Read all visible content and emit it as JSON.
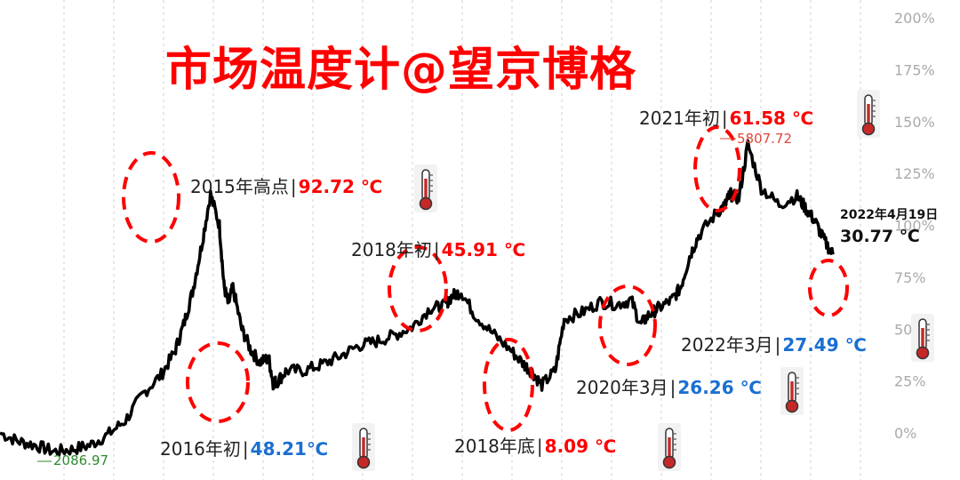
{
  "title": "市场温度计@望京博格",
  "annotations": [
    {
      "id": "a2015",
      "label": "2015年高点",
      "value": "92.72 ℃",
      "color": "red"
    },
    {
      "id": "a2016",
      "label": "2016年初",
      "value": "48.21℃",
      "color": "blue"
    },
    {
      "id": "a2018top",
      "label": "2018年初",
      "value": "45.91 ℃",
      "color": "red"
    },
    {
      "id": "a2018bot",
      "label": "2018年底",
      "value": "8.09 ℃",
      "color": "red"
    },
    {
      "id": "a2020",
      "label": "2020年3月",
      "value": "26.26 ℃",
      "color": "blue"
    },
    {
      "id": "a2021",
      "label": "2021年初",
      "value": "61.58 ℃",
      "color": "red"
    },
    {
      "id": "a2022",
      "label": "2022年3月",
      "value": "27.49 ℃",
      "color": "blue"
    }
  ],
  "latest": {
    "date": "2022年4月19日",
    "temp": "30.77 ℃"
  },
  "point_labels": {
    "low": "2086.97",
    "high": "5807.72"
  },
  "colors": {
    "line": "#000000",
    "accent": "#ff0000",
    "blue": "#1a6fd1",
    "low_label": "#2e8b2e",
    "high_label": "#e0463c",
    "grid": "#d0d0d0"
  },
  "chart_data": {
    "type": "line",
    "y_axis_ticks": [
      "200%",
      "175%",
      "150%",
      "125%",
      "100%",
      "75%",
      "50%",
      "25%",
      "0%"
    ],
    "ylim": [
      0,
      200
    ],
    "y_axis_side": "right",
    "grid": "vertical dashed",
    "x": [
      2013.0,
      2013.2,
      2013.4,
      2013.6,
      2013.8,
      2014.0,
      2014.2,
      2014.4,
      2014.6,
      2014.8,
      2014.95,
      2015.05,
      2015.15,
      2015.25,
      2015.35,
      2015.45,
      2015.5,
      2015.55,
      2015.6,
      2015.7,
      2015.8,
      2015.9,
      2016.0,
      2016.05,
      2016.1,
      2016.2,
      2016.4,
      2016.6,
      2016.8,
      2017.0,
      2017.2,
      2017.4,
      2017.6,
      2017.8,
      2017.95,
      2018.05,
      2018.15,
      2018.3,
      2018.5,
      2018.7,
      2018.85,
      2018.95,
      2019.05,
      2019.2,
      2019.3,
      2019.5,
      2019.7,
      2019.9,
      2020.05,
      2020.15,
      2020.25,
      2020.35,
      2020.5,
      2020.6,
      2020.7,
      2020.8,
      2021.0,
      2021.1,
      2021.15,
      2021.25,
      2021.35,
      2021.5,
      2021.7,
      2021.9,
      2022.0,
      2022.1,
      2022.2,
      2022.3
    ],
    "values": [
      0,
      -4,
      -6,
      -9,
      -8,
      -6,
      -1,
      6,
      19,
      28,
      39,
      52,
      68,
      90,
      115,
      100,
      71,
      62,
      70,
      50,
      40,
      34,
      36,
      24,
      25,
      30,
      30,
      33,
      37,
      42,
      44,
      47,
      51,
      60,
      61,
      66,
      68,
      57,
      48,
      40,
      33,
      29,
      23,
      30,
      55,
      58,
      63,
      62,
      64,
      52,
      57,
      60,
      64,
      70,
      85,
      95,
      106,
      110,
      115,
      113,
      139,
      118,
      110,
      114,
      108,
      102,
      93,
      86
    ]
  }
}
